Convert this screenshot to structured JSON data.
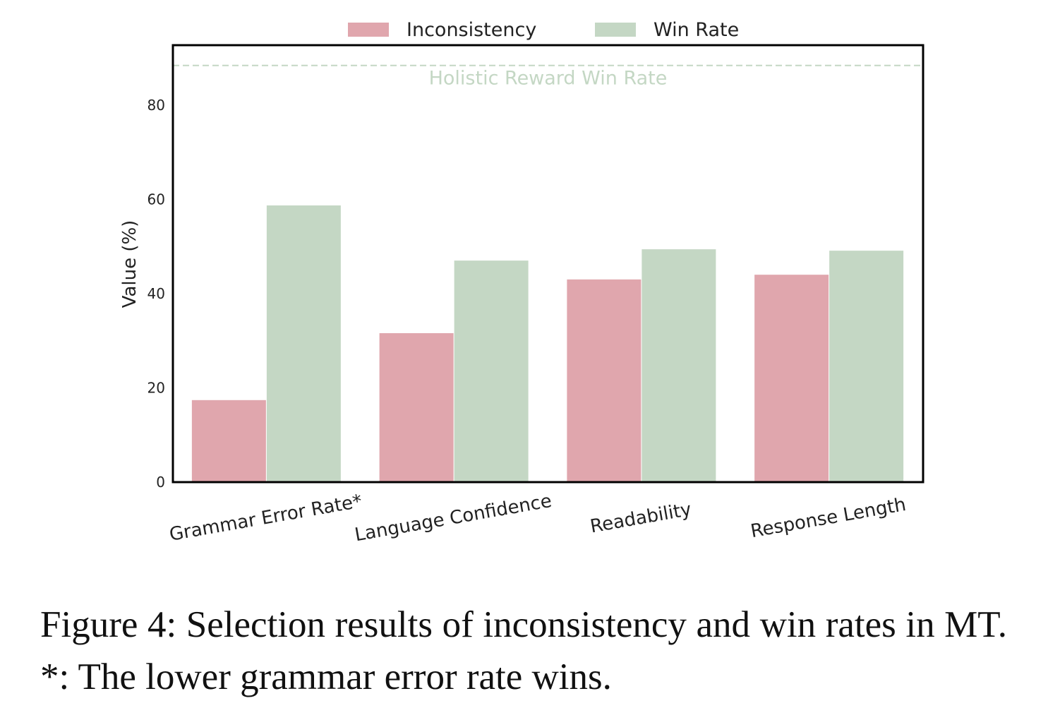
{
  "chart_data": {
    "type": "bar",
    "categories": [
      "Grammar Error Rate*",
      "Language Confidence",
      "Readability",
      "Response Length"
    ],
    "series": [
      {
        "name": "Inconsistency",
        "color": "#e0a6ad",
        "values": [
          17.4,
          31.6,
          43.0,
          44.0
        ]
      },
      {
        "name": "Win Rate",
        "color": "#c4d7c4",
        "values": [
          58.7,
          47.0,
          49.4,
          49.1
        ]
      }
    ],
    "reference_line": {
      "label": "Holistic Reward Win Rate",
      "value": 88.4,
      "color": "#c4d7c4",
      "style": "dashed"
    },
    "xlabel": "",
    "ylabel": "Value (%)",
    "ylim": [
      0,
      92.7
    ],
    "yticks": [
      0,
      20,
      40,
      60,
      80
    ],
    "grid": false,
    "legend_placement": "top-center"
  },
  "caption": "Figure 4:  Selection results of inconsistency and win rates in MT. *: The lower grammar error rate wins."
}
